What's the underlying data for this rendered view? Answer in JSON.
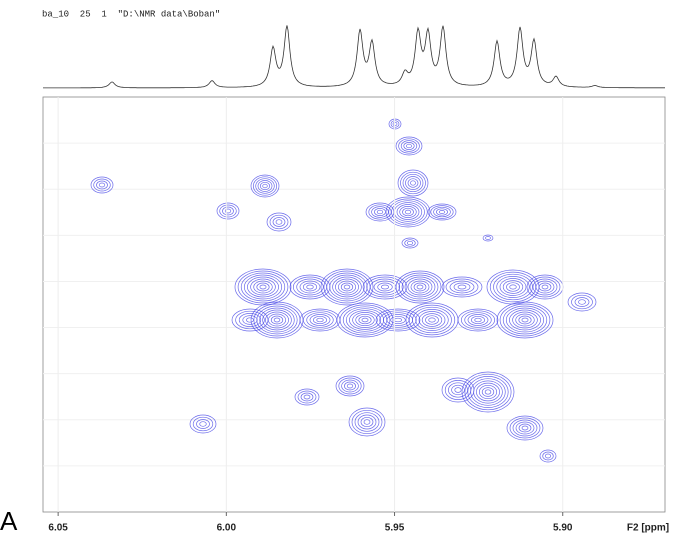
{
  "chart_data": {
    "type": "nmr-2d",
    "header": "ba_10  25  1  \"D:\\NMR data\\Boban\"",
    "panel_label": "A",
    "xlabel": "F2 [ppm]",
    "xlim": [
      6.0545,
      5.8696
    ],
    "xticks": [
      6.05,
      {
        "value": 6,
        "label": "6.00"
      },
      5.95,
      {
        "value": 5.9,
        "label": "5.90"
      }
    ],
    "grid": true,
    "color": "#5050e8"
  }
}
